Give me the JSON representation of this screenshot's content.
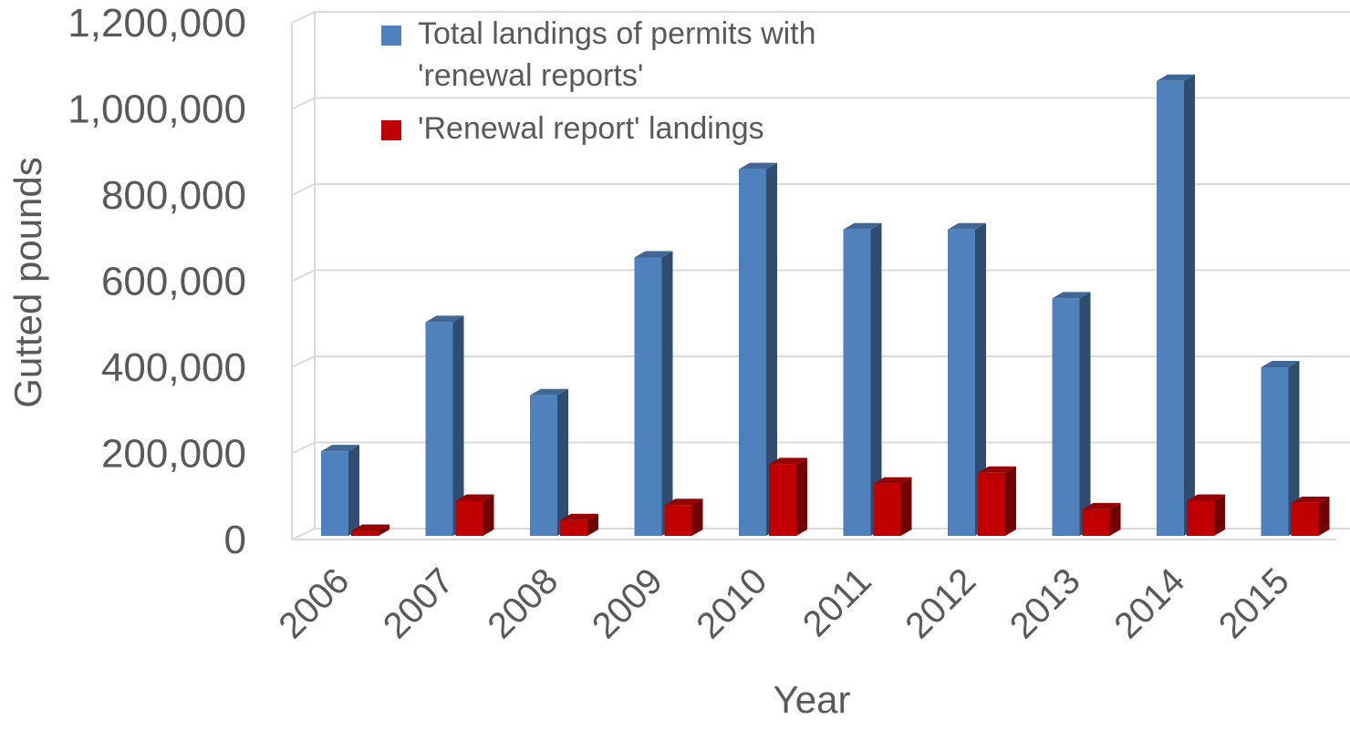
{
  "chart_data": {
    "type": "bar3d",
    "categories": [
      "2006",
      "2007",
      "2008",
      "2009",
      "2010",
      "2011",
      "2012",
      "2013",
      "2014",
      "2015"
    ],
    "series": [
      {
        "name": "Total landings of permits with 'renewal reports'",
        "color": "#4f81bd",
        "values": [
          205000,
          505000,
          335000,
          655000,
          860000,
          720000,
          720000,
          560000,
          1065000,
          400000
        ]
      },
      {
        "name": "'Renewal report' landings",
        "color": "#c00000",
        "values": [
          20000,
          90000,
          45000,
          80000,
          175000,
          130000,
          155000,
          70000,
          90000,
          85000
        ]
      }
    ],
    "ylim": [
      0,
      1200000
    ],
    "yticks": [
      0,
      {
        "value": 200000,
        "label": "200,000"
      },
      {
        "value": 400000,
        "label": "400,000"
      },
      {
        "value": 600000,
        "label": "600,000"
      },
      {
        "value": 800000,
        "label": "800,000"
      },
      {
        "value": 1000000,
        "label": "1,000,000"
      },
      {
        "value": 1200000,
        "label": "1,200,000"
      }
    ],
    "xlabel": "Year",
    "ylabel": "Gutted pounds",
    "grid": true,
    "legend": "top"
  }
}
